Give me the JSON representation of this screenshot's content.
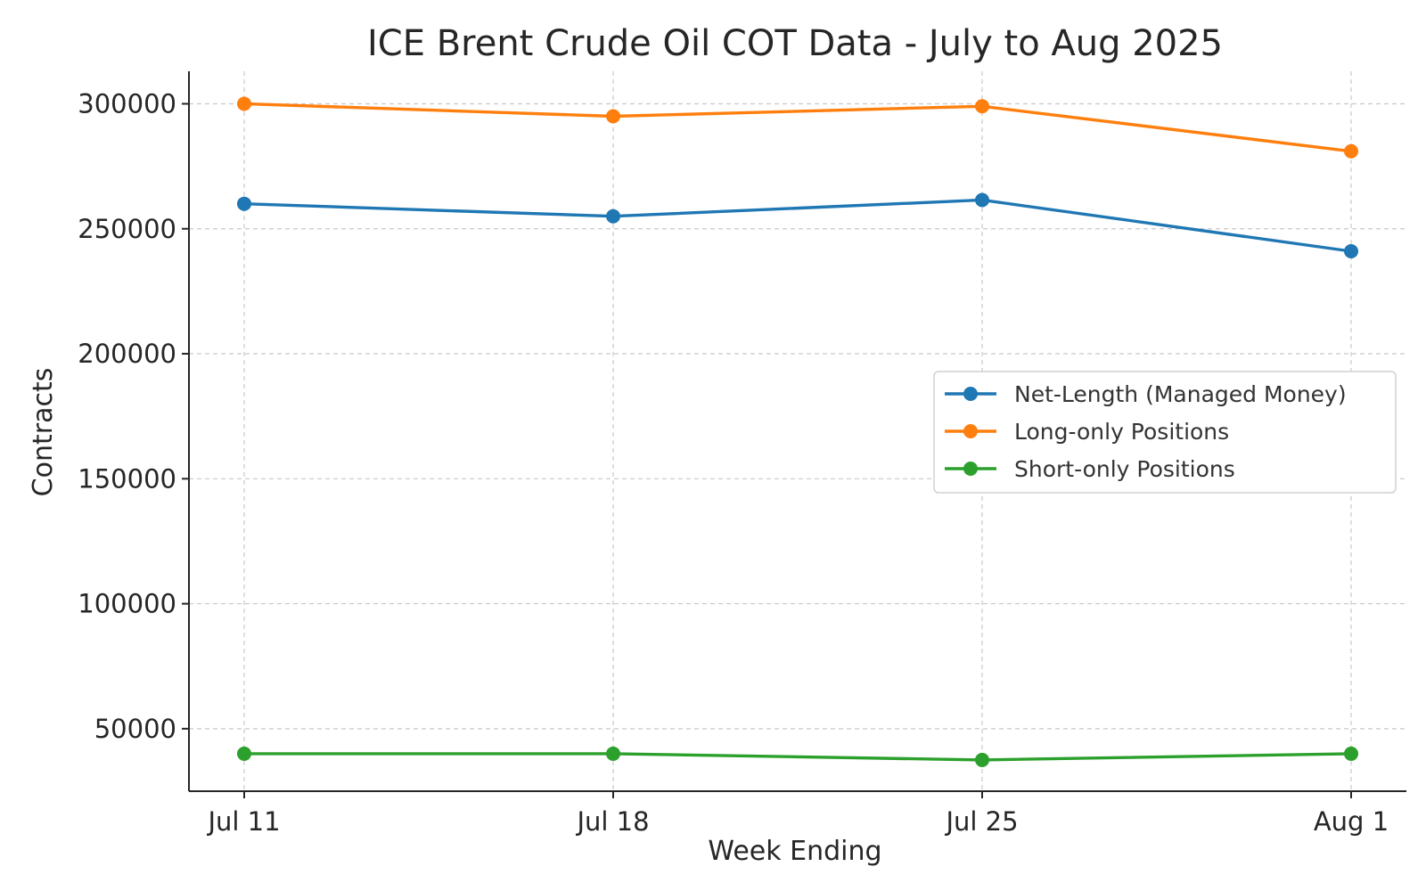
{
  "chart_data": {
    "type": "line",
    "title": "ICE Brent Crude Oil COT Data - July to Aug 2025",
    "xlabel": "Week Ending",
    "ylabel": "Contracts",
    "categories": [
      "Jul 11",
      "Jul 18",
      "Jul 25",
      "Aug 1"
    ],
    "ylim": [
      25000,
      313000
    ],
    "yticks": [
      50000,
      100000,
      150000,
      200000,
      250000,
      300000
    ],
    "ytick_labels": [
      "50000",
      "100000",
      "150000",
      "200000",
      "250000",
      "300000"
    ],
    "grid": true,
    "legend_position": "center-right",
    "series": [
      {
        "name": "Net-Length (Managed Money)",
        "color": "#1f77b4",
        "marker": "circle",
        "values": [
          260000,
          255000,
          261500,
          241000
        ]
      },
      {
        "name": "Long-only Positions",
        "color": "#ff7f0e",
        "marker": "circle",
        "values": [
          300000,
          295000,
          299000,
          281000
        ]
      },
      {
        "name": "Short-only Positions",
        "color": "#2ca02c",
        "marker": "circle",
        "values": [
          40000,
          40000,
          37500,
          40000
        ]
      }
    ]
  }
}
